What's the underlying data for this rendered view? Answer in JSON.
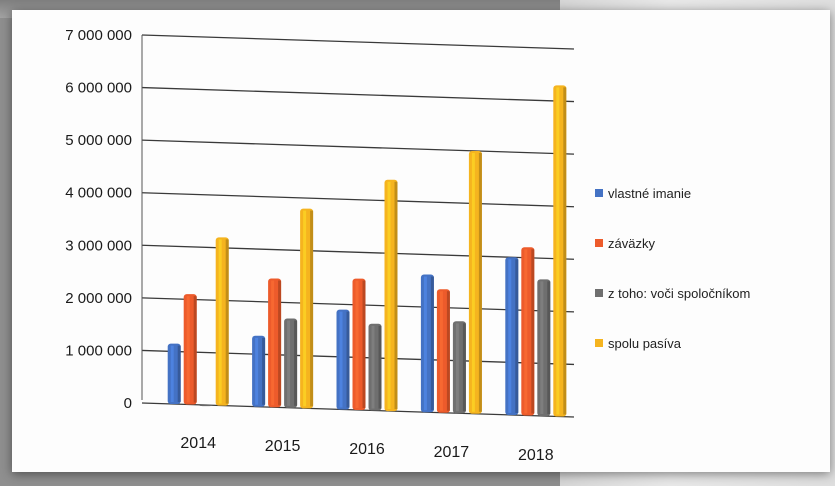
{
  "chart_data": {
    "type": "bar",
    "categories": [
      "2014",
      "2015",
      "2016",
      "2017",
      "2018"
    ],
    "series": [
      {
        "name": "vlastné imanie",
        "color": "#4472c4",
        "values": [
          1150000,
          1350000,
          1900000,
          2620000,
          3000000
        ]
      },
      {
        "name": "záväzky",
        "color": "#ed5b2b",
        "values": [
          2100000,
          2450000,
          2500000,
          2350000,
          3200000
        ]
      },
      {
        "name": "z toho: voči spoločníkom",
        "color": "#6f6f6f",
        "values": [
          0,
          1700000,
          1650000,
          1750000,
          2600000
        ]
      },
      {
        "name": "spolu pasíva",
        "color": "#f5b41f",
        "values": [
          3200000,
          3800000,
          4400000,
          5000000,
          6300000
        ]
      }
    ],
    "y_ticks": [
      "0",
      "1 000 000",
      "2 000 000",
      "3 000 000",
      "4 000 000",
      "5 000 000",
      "6 000 000",
      "7 000 000"
    ],
    "ylim": [
      0,
      7000000
    ],
    "grid": true,
    "legend_position": "right",
    "title": "",
    "xlabel": "",
    "ylabel": ""
  }
}
